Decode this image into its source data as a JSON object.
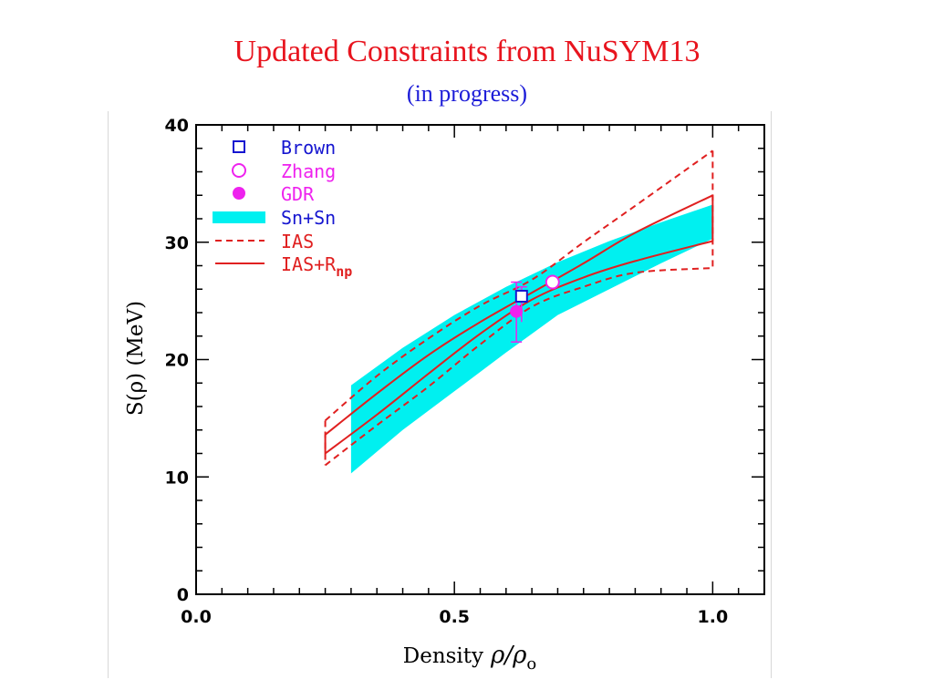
{
  "header": {
    "title": "Updated Constraints from NuSYM13",
    "subtitle": "(in progress)"
  },
  "colors": {
    "band": "#00f0f0",
    "ias": "#e02020",
    "brown": "#1616d0",
    "zhang": "#ee22ee",
    "gdr": "#ee22ee"
  },
  "chart_data": {
    "type": "line",
    "xlabel_main": "Density",
    "xlabel_symbol": "ρ/ρ",
    "xlabel_sub": "o",
    "ylabel": "S(ρ) (MeV)",
    "xlim": [
      0.0,
      1.1
    ],
    "ylim": [
      0,
      40
    ],
    "x_ticks": [
      {
        "value": 0.0,
        "label": "0.0"
      },
      {
        "value": 0.5,
        "label": "0.5"
      },
      {
        "value": 1.0,
        "label": "1.0"
      }
    ],
    "y_ticks": [
      {
        "value": 0,
        "label": "0"
      },
      {
        "value": 10,
        "label": "10"
      },
      {
        "value": 20,
        "label": "20"
      },
      {
        "value": 30,
        "label": "30"
      },
      {
        "value": 40,
        "label": "40"
      }
    ],
    "legend": {
      "placement": "top-left",
      "entries": [
        {
          "name": "Brown",
          "marker": "open-square"
        },
        {
          "name": "Zhang",
          "marker": "open-circle"
        },
        {
          "name": "GDR",
          "marker": "filled-circle"
        },
        {
          "name": "Sn+Sn",
          "marker": "band"
        },
        {
          "name": "IAS",
          "marker": "dashed-line"
        },
        {
          "name": "IAS+R",
          "sub": "np",
          "marker": "solid-line"
        }
      ]
    },
    "band": {
      "name": "Sn+Sn",
      "upper": [
        [
          0.3,
          17.8
        ],
        [
          0.4,
          21.0
        ],
        [
          0.5,
          23.8
        ],
        [
          0.6,
          26.2
        ],
        [
          0.7,
          28.3
        ],
        [
          0.8,
          30.1
        ],
        [
          0.9,
          31.7
        ],
        [
          1.0,
          33.2
        ]
      ],
      "lower": [
        [
          0.3,
          10.3
        ],
        [
          0.4,
          14.0
        ],
        [
          0.5,
          17.3
        ],
        [
          0.6,
          20.6
        ],
        [
          0.7,
          23.8
        ],
        [
          0.8,
          26.0
        ],
        [
          0.9,
          28.2
        ],
        [
          1.0,
          30.3
        ]
      ]
    },
    "ias_dashed": {
      "name": "IAS",
      "upper": [
        [
          0.25,
          14.8
        ],
        [
          0.35,
          18.6
        ],
        [
          0.45,
          21.8
        ],
        [
          0.55,
          24.6
        ],
        [
          0.65,
          26.8
        ],
        [
          0.75,
          30.0
        ],
        [
          0.85,
          33.1
        ],
        [
          1.0,
          37.8
        ]
      ],
      "lower": [
        [
          0.25,
          11.0
        ],
        [
          0.35,
          14.4
        ],
        [
          0.45,
          17.7
        ],
        [
          0.55,
          21.3
        ],
        [
          0.65,
          24.5
        ],
        [
          0.75,
          26.2
        ],
        [
          0.85,
          27.4
        ],
        [
          1.0,
          27.8
        ]
      ]
    },
    "ias_rnp_solid": {
      "name": "IAS+Rnp",
      "upper": [
        [
          0.25,
          13.6
        ],
        [
          0.35,
          17.1
        ],
        [
          0.45,
          20.4
        ],
        [
          0.55,
          23.2
        ],
        [
          0.65,
          25.7
        ],
        [
          0.75,
          28.2
        ],
        [
          0.85,
          30.8
        ],
        [
          1.0,
          34.0
        ]
      ],
      "lower": [
        [
          0.25,
          12.0
        ],
        [
          0.35,
          15.3
        ],
        [
          0.45,
          18.8
        ],
        [
          0.55,
          22.2
        ],
        [
          0.65,
          25.1
        ],
        [
          0.75,
          27.0
        ],
        [
          0.85,
          28.4
        ],
        [
          1.0,
          30.1
        ]
      ]
    },
    "points": [
      {
        "name": "Brown",
        "x": 0.63,
        "y": 25.4,
        "y_err": [
          2.2,
          0.8
        ]
      },
      {
        "name": "Zhang",
        "x": 0.69,
        "y": 26.6
      },
      {
        "name": "GDR",
        "x": 0.62,
        "y": 24.1,
        "y_err": [
          2.6,
          2.5
        ]
      }
    ]
  }
}
